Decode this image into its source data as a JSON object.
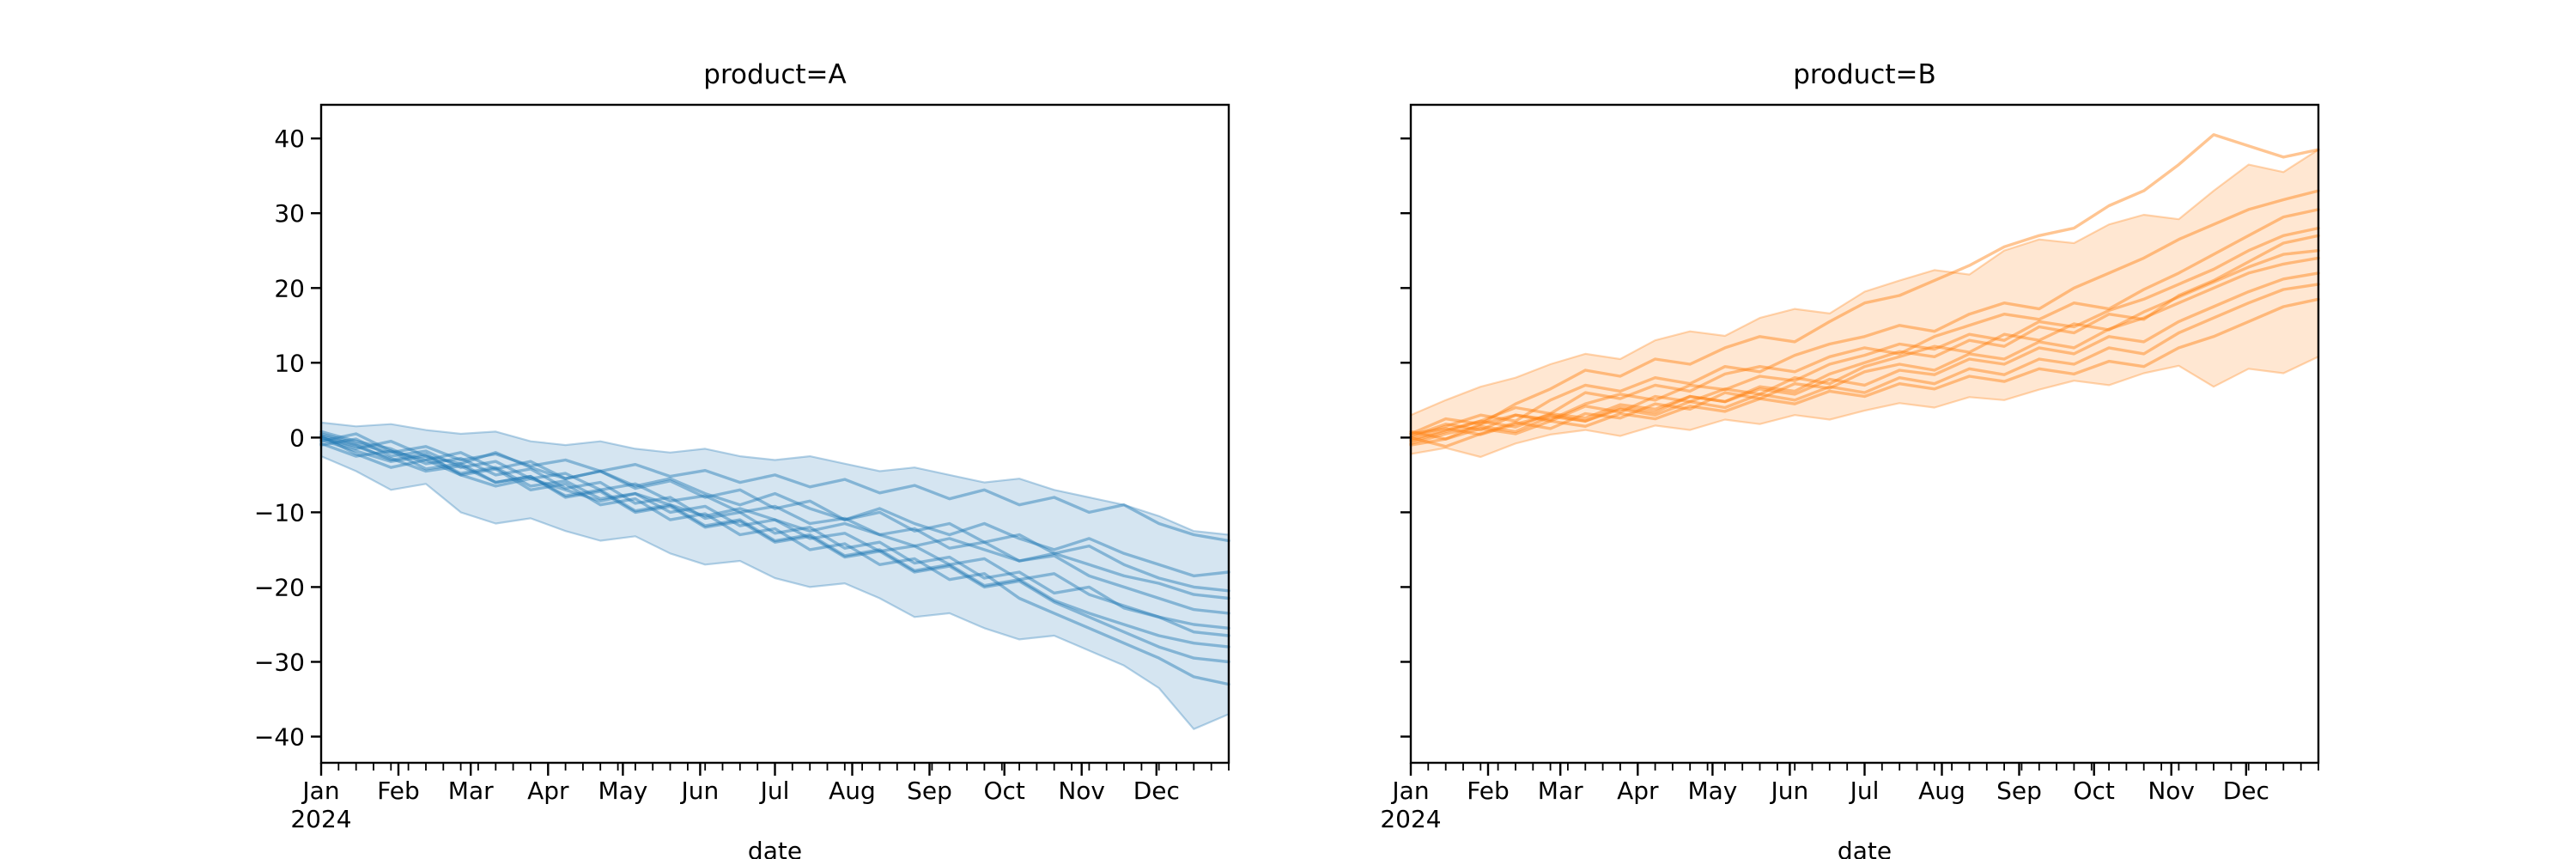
{
  "style": {
    "background": "#ffffff",
    "text_color": "#000000",
    "spine_color": "#000000",
    "band_fill_opacity": 0.19,
    "band_edge_opacity": 0.32,
    "line_opacity": 0.45
  },
  "chart_data": [
    {
      "id": "A",
      "type": "line",
      "title": "product=A",
      "xlabel": "date",
      "color": "#1f77b4",
      "xlim_days": [
        0,
        364
      ],
      "ylim": [
        -43.5,
        44.5
      ],
      "x_ticks": [
        {
          "day": 0,
          "label": "Jan",
          "sub": "2024"
        },
        {
          "day": 31,
          "label": "Feb"
        },
        {
          "day": 60,
          "label": "Mar"
        },
        {
          "day": 91,
          "label": "Apr"
        },
        {
          "day": 121,
          "label": "May"
        },
        {
          "day": 152,
          "label": "Jun"
        },
        {
          "day": 182,
          "label": "Jul"
        },
        {
          "day": 213,
          "label": "Aug"
        },
        {
          "day": 244,
          "label": "Sep"
        },
        {
          "day": 274,
          "label": "Oct"
        },
        {
          "day": 305,
          "label": "Nov"
        },
        {
          "day": 335,
          "label": "Dec"
        }
      ],
      "x_minor_tick_interval_days": 7,
      "y_ticks": [
        {
          "value": 40,
          "label": "40"
        },
        {
          "value": 30,
          "label": "30"
        },
        {
          "value": 20,
          "label": "20"
        },
        {
          "value": 10,
          "label": "10"
        },
        {
          "value": 0,
          "label": "0"
        },
        {
          "value": -10,
          "label": "−10"
        },
        {
          "value": -20,
          "label": "−20"
        },
        {
          "value": -30,
          "label": "−30"
        },
        {
          "value": -40,
          "label": "−40"
        }
      ],
      "y_tick_labels_visible": true,
      "series_x": [
        0,
        14,
        28,
        42,
        56,
        70,
        84,
        98,
        112,
        126,
        140,
        154,
        168,
        182,
        196,
        210,
        224,
        238,
        252,
        266,
        280,
        294,
        308,
        322,
        336,
        350,
        364
      ],
      "band": {
        "upper": [
          2.0,
          1.5,
          1.8,
          1.0,
          0.5,
          0.8,
          -0.5,
          -1.0,
          -0.5,
          -1.5,
          -2.0,
          -1.5,
          -2.5,
          -3.0,
          -2.5,
          -3.5,
          -4.5,
          -4.0,
          -5.0,
          -6.0,
          -5.5,
          -7.0,
          -8.0,
          -9.0,
          -10.5,
          -12.5,
          -13.0
        ],
        "lower": [
          -2.5,
          -4.5,
          -7.0,
          -6.2,
          -10.0,
          -11.5,
          -10.8,
          -12.5,
          -13.8,
          -13.2,
          -15.5,
          -17.0,
          -16.5,
          -18.8,
          -20.0,
          -19.5,
          -21.5,
          -24.0,
          -23.5,
          -25.5,
          -27.0,
          -26.5,
          -28.5,
          -30.5,
          -33.5,
          -39.0,
          -37.0
        ]
      },
      "series": [
        [
          0.5,
          -0.8,
          -2.0,
          -1.2,
          -3.0,
          -2.2,
          -3.8,
          -3.0,
          -4.5,
          -3.6,
          -5.2,
          -4.4,
          -6.0,
          -5.0,
          -6.6,
          -5.6,
          -7.4,
          -6.4,
          -8.2,
          -7.0,
          -9.0,
          -8.0,
          -10.0,
          -9.0,
          -11.5,
          -13.0,
          -13.8
        ],
        [
          0.0,
          -1.5,
          -0.5,
          -2.5,
          -3.5,
          -2.0,
          -4.0,
          -5.5,
          -4.5,
          -6.5,
          -5.5,
          -7.5,
          -9.0,
          -7.5,
          -9.5,
          -11.0,
          -9.5,
          -11.5,
          -13.0,
          -11.5,
          -13.5,
          -15.0,
          -13.5,
          -15.5,
          -17.0,
          -18.5,
          -18.0
        ],
        [
          -0.5,
          0.5,
          -1.8,
          -3.0,
          -2.0,
          -4.2,
          -3.2,
          -5.5,
          -4.5,
          -6.8,
          -5.8,
          -8.0,
          -7.0,
          -9.5,
          -8.5,
          -11.0,
          -10.0,
          -12.5,
          -11.5,
          -14.0,
          -13.0,
          -15.5,
          -14.5,
          -17.0,
          -18.8,
          -20.0,
          -20.5
        ],
        [
          0.2,
          -2.2,
          -4.0,
          -3.0,
          -5.0,
          -6.5,
          -5.5,
          -7.0,
          -8.5,
          -7.5,
          -9.0,
          -10.5,
          -9.5,
          -11.0,
          -12.5,
          -11.5,
          -13.0,
          -14.5,
          -13.5,
          -15.0,
          -16.5,
          -15.5,
          -17.0,
          -18.5,
          -19.5,
          -21.0,
          -21.5
        ],
        [
          -1.0,
          -0.2,
          -2.5,
          -1.8,
          -4.0,
          -3.2,
          -5.5,
          -4.8,
          -7.0,
          -6.2,
          -8.5,
          -7.8,
          -10.0,
          -9.2,
          -11.5,
          -10.8,
          -13.0,
          -12.2,
          -14.8,
          -14.0,
          -16.5,
          -15.8,
          -18.5,
          -20.0,
          -21.5,
          -23.0,
          -23.5
        ],
        [
          0.8,
          -0.5,
          -1.5,
          -3.5,
          -2.8,
          -5.0,
          -4.2,
          -6.8,
          -6.0,
          -8.8,
          -8.0,
          -10.8,
          -10.0,
          -12.8,
          -12.0,
          -14.8,
          -14.0,
          -16.8,
          -16.0,
          -18.8,
          -18.0,
          -20.8,
          -20.0,
          -22.8,
          -24.0,
          -25.0,
          -25.5
        ],
        [
          -0.3,
          -1.8,
          -3.2,
          -2.5,
          -4.8,
          -4.0,
          -6.5,
          -5.8,
          -8.2,
          -7.5,
          -10.0,
          -9.2,
          -11.8,
          -11.0,
          -13.5,
          -12.8,
          -15.2,
          -14.5,
          -17.0,
          -16.2,
          -19.0,
          -18.2,
          -21.0,
          -22.5,
          -24.0,
          -26.0,
          -26.5
        ],
        [
          0.0,
          -1.2,
          -2.8,
          -4.5,
          -3.8,
          -6.0,
          -5.2,
          -7.8,
          -7.0,
          -9.8,
          -9.0,
          -11.8,
          -11.0,
          -13.8,
          -13.0,
          -15.8,
          -15.0,
          -17.8,
          -17.0,
          -19.8,
          -19.0,
          -21.8,
          -23.5,
          -25.0,
          -26.5,
          -27.5,
          -28.0
        ],
        [
          -0.8,
          -2.5,
          -1.8,
          -4.2,
          -3.5,
          -6.0,
          -5.2,
          -8.0,
          -7.2,
          -10.0,
          -9.2,
          -12.0,
          -11.2,
          -14.0,
          -13.2,
          -16.0,
          -15.2,
          -18.0,
          -17.2,
          -20.0,
          -19.2,
          -22.0,
          -24.0,
          -26.0,
          -28.0,
          -29.5,
          -30.0
        ],
        [
          0.3,
          -1.0,
          -3.0,
          -2.2,
          -5.0,
          -4.2,
          -7.0,
          -6.2,
          -9.0,
          -8.2,
          -11.0,
          -10.2,
          -13.0,
          -12.2,
          -15.0,
          -14.2,
          -17.0,
          -16.2,
          -19.0,
          -18.2,
          -21.5,
          -23.5,
          -25.5,
          -27.5,
          -29.5,
          -32.0,
          -33.0
        ]
      ]
    },
    {
      "id": "B",
      "type": "line",
      "title": "product=B",
      "xlabel": "date",
      "color": "#ff7f0e",
      "xlim_days": [
        0,
        364
      ],
      "ylim": [
        -43.5,
        44.5
      ],
      "x_ticks": [
        {
          "day": 0,
          "label": "Jan",
          "sub": "2024"
        },
        {
          "day": 31,
          "label": "Feb"
        },
        {
          "day": 60,
          "label": "Mar"
        },
        {
          "day": 91,
          "label": "Apr"
        },
        {
          "day": 121,
          "label": "May"
        },
        {
          "day": 152,
          "label": "Jun"
        },
        {
          "day": 182,
          "label": "Jul"
        },
        {
          "day": 213,
          "label": "Aug"
        },
        {
          "day": 244,
          "label": "Sep"
        },
        {
          "day": 274,
          "label": "Oct"
        },
        {
          "day": 305,
          "label": "Nov"
        },
        {
          "day": 335,
          "label": "Dec"
        }
      ],
      "x_minor_tick_interval_days": 7,
      "y_ticks": [
        {
          "value": 40,
          "label": "40"
        },
        {
          "value": 30,
          "label": "30"
        },
        {
          "value": 20,
          "label": "20"
        },
        {
          "value": 10,
          "label": "10"
        },
        {
          "value": 0,
          "label": "0"
        },
        {
          "value": -10,
          "label": "−10"
        },
        {
          "value": -20,
          "label": "−20"
        },
        {
          "value": -30,
          "label": "−30"
        },
        {
          "value": -40,
          "label": "−40"
        }
      ],
      "y_tick_labels_visible": false,
      "series_x": [
        0,
        14,
        28,
        42,
        56,
        70,
        84,
        98,
        112,
        126,
        140,
        154,
        168,
        182,
        196,
        210,
        224,
        238,
        252,
        266,
        280,
        294,
        308,
        322,
        336,
        350,
        364
      ],
      "band": {
        "upper": [
          3.0,
          5.0,
          6.8,
          8.0,
          9.8,
          11.2,
          10.5,
          13.0,
          14.2,
          13.6,
          16.0,
          17.2,
          16.6,
          19.5,
          21.0,
          22.4,
          21.8,
          25.0,
          26.5,
          26.0,
          28.5,
          29.8,
          29.2,
          33.0,
          36.5,
          35.5,
          38.5
        ],
        "lower": [
          -2.2,
          -1.4,
          -2.6,
          -0.8,
          0.4,
          1.0,
          0.2,
          1.6,
          1.0,
          2.4,
          1.8,
          3.0,
          2.4,
          3.6,
          4.6,
          4.0,
          5.4,
          5.0,
          6.4,
          7.6,
          7.0,
          8.6,
          9.6,
          6.8,
          9.2,
          8.6,
          10.8
        ]
      },
      "series": [
        [
          0.5,
          2.5,
          1.8,
          4.5,
          6.5,
          9.0,
          8.2,
          10.5,
          9.8,
          12.0,
          13.5,
          12.8,
          15.5,
          18.0,
          19.0,
          21.0,
          23.0,
          25.5,
          27.0,
          28.0,
          31.0,
          33.0,
          36.5,
          40.5,
          39.0,
          37.5,
          38.5
        ],
        [
          0.0,
          1.5,
          3.0,
          2.2,
          5.0,
          7.0,
          6.2,
          8.0,
          7.2,
          9.5,
          8.8,
          11.0,
          12.5,
          13.5,
          15.0,
          14.2,
          16.5,
          18.0,
          17.2,
          20.0,
          22.0,
          24.0,
          26.5,
          28.5,
          30.5,
          31.8,
          33.0
        ],
        [
          -0.5,
          0.8,
          2.2,
          4.0,
          3.2,
          6.0,
          5.2,
          7.0,
          6.2,
          8.5,
          9.5,
          8.8,
          10.8,
          12.0,
          11.2,
          13.5,
          15.0,
          16.5,
          15.8,
          18.0,
          17.2,
          19.8,
          22.0,
          24.5,
          27.0,
          29.5,
          30.5
        ],
        [
          0.8,
          -0.2,
          1.8,
          3.0,
          2.4,
          4.5,
          5.8,
          5.0,
          7.0,
          6.4,
          8.2,
          7.6,
          9.8,
          11.0,
          12.5,
          11.8,
          13.8,
          13.0,
          15.5,
          14.8,
          17.0,
          18.5,
          20.5,
          22.5,
          25.0,
          27.0,
          28.0
        ],
        [
          -0.8,
          0.5,
          1.5,
          0.8,
          2.8,
          2.2,
          4.0,
          3.4,
          5.5,
          4.8,
          6.8,
          6.2,
          8.5,
          10.0,
          11.5,
          10.8,
          13.0,
          12.2,
          14.8,
          14.0,
          16.5,
          15.8,
          19.0,
          21.0,
          23.5,
          26.0,
          27.0
        ],
        [
          0.2,
          1.8,
          1.0,
          3.0,
          2.2,
          4.2,
          3.4,
          5.5,
          4.8,
          6.5,
          5.8,
          8.0,
          7.2,
          9.5,
          10.8,
          12.2,
          11.4,
          13.8,
          13.0,
          15.2,
          14.4,
          16.8,
          18.8,
          20.8,
          22.8,
          24.5,
          25.0
        ],
        [
          0.0,
          -1.2,
          0.5,
          2.0,
          1.2,
          3.2,
          2.6,
          4.5,
          3.8,
          6.0,
          5.2,
          7.2,
          6.6,
          8.8,
          9.8,
          9.0,
          11.2,
          10.5,
          12.8,
          12.0,
          14.5,
          16.0,
          18.0,
          20.0,
          22.0,
          23.2,
          24.0
        ],
        [
          -0.3,
          1.0,
          2.2,
          1.4,
          3.2,
          2.6,
          4.4,
          3.8,
          5.5,
          4.8,
          6.5,
          5.8,
          7.8,
          7.0,
          9.0,
          8.4,
          10.5,
          9.8,
          12.0,
          11.2,
          13.5,
          12.8,
          15.5,
          17.5,
          19.5,
          21.2,
          22.0
        ],
        [
          0.5,
          1.2,
          0.4,
          1.8,
          3.0,
          2.2,
          3.8,
          3.0,
          4.8,
          4.0,
          5.8,
          5.0,
          6.8,
          6.0,
          8.0,
          7.2,
          9.2,
          8.4,
          10.5,
          9.8,
          12.0,
          11.2,
          14.0,
          16.0,
          18.0,
          19.8,
          20.5
        ],
        [
          -1.0,
          -0.2,
          1.2,
          0.5,
          2.2,
          1.5,
          3.2,
          2.5,
          4.2,
          3.5,
          5.2,
          4.5,
          6.2,
          5.5,
          7.2,
          6.5,
          8.2,
          7.5,
          9.2,
          8.5,
          10.2,
          9.5,
          12.0,
          13.5,
          15.5,
          17.5,
          18.5
        ]
      ]
    }
  ]
}
